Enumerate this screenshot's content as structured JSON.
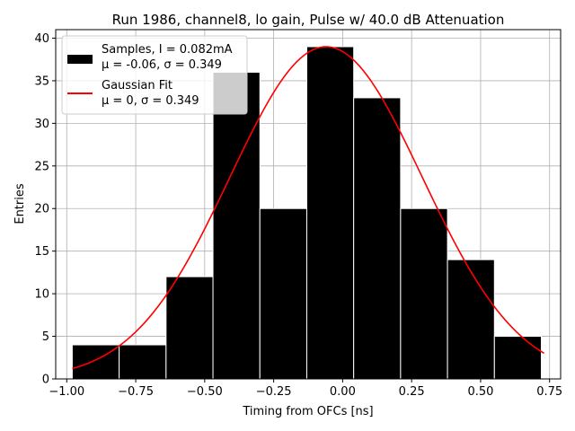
{
  "chart_data": {
    "type": "bar",
    "title": "Run 1986, channel8, lo gain, Pulse w/ 40.0 dB Attenuation",
    "xlabel": "Timing from OFCs [ns]",
    "ylabel": "Entries",
    "xlim": [
      -1.04,
      0.79
    ],
    "ylim": [
      0,
      41
    ],
    "grid": true,
    "xticks": [
      -1.0,
      -0.75,
      -0.5,
      -0.25,
      0.0,
      0.25,
      0.5,
      0.75
    ],
    "xtick_labels": [
      "−1.00",
      "−0.75",
      "−0.50",
      "−0.25",
      "0.00",
      "0.25",
      "0.50",
      "0.75"
    ],
    "yticks": [
      0,
      5,
      10,
      15,
      20,
      25,
      30,
      35,
      40
    ],
    "yticks_labels": [
      "0",
      "5",
      "10",
      "15",
      "20",
      "25",
      "30",
      "35",
      "40"
    ],
    "bin_edges": [
      -0.98,
      -0.81,
      -0.64,
      -0.47,
      -0.3,
      -0.13,
      0.04,
      0.21,
      0.38,
      0.55,
      0.72
    ],
    "values": [
      4,
      4,
      12,
      36,
      20,
      39,
      33,
      20,
      14,
      5
    ],
    "bar_color": "#000000",
    "bar_edge_color": "#ffffff",
    "fit": {
      "mu": -0.06,
      "sigma": 0.349,
      "amplitude": 39,
      "x_range": [
        -0.98,
        0.73
      ],
      "color": "#ff0000"
    },
    "legend": {
      "position": "upper-left",
      "entries": [
        {
          "type": "bar",
          "line1": "Samples, I = 0.082mA",
          "line2": "μ = -0.06, σ = 0.349"
        },
        {
          "type": "line",
          "line1": "Gaussian Fit",
          "line2": "μ = 0, σ = 0.349"
        }
      ]
    }
  }
}
